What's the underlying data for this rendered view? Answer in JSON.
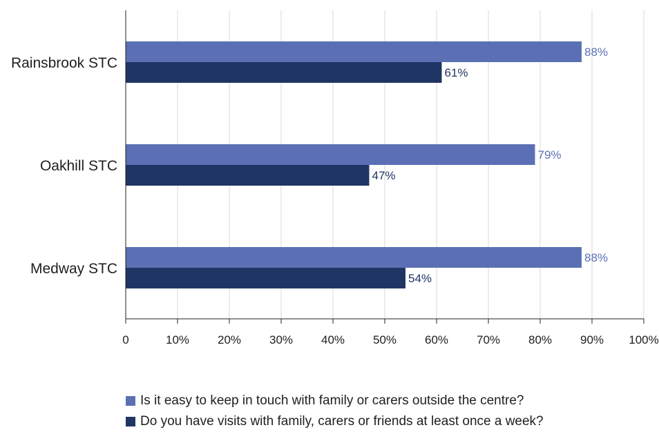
{
  "chart_data": {
    "type": "bar",
    "orientation": "horizontal",
    "categories": [
      "Rainsbrook STC",
      "Oakhill STC",
      "Medway STC"
    ],
    "series": [
      {
        "name": "Is it easy to keep in touch with family or carers outside the centre?",
        "values": [
          88,
          79,
          88
        ],
        "labels": [
          "88%",
          "79%",
          "88%"
        ],
        "color": "#5b70b4"
      },
      {
        "name": "Do you have visits with family, carers or friends at least once a week?",
        "values": [
          61,
          47,
          54
        ],
        "labels": [
          "61%",
          "47%",
          "54%"
        ],
        "color": "#1f3564"
      }
    ],
    "xlim": [
      0,
      100
    ],
    "xticks": [
      0,
      10,
      20,
      30,
      40,
      50,
      60,
      70,
      80,
      90,
      100
    ],
    "xtick_labels": [
      "0",
      "10%",
      "20%",
      "30%",
      "40%",
      "50%",
      "60%",
      "70%",
      "80%",
      "90%",
      "100%"
    ],
    "grid": true,
    "legend_position": "bottom",
    "title": "",
    "xlabel": "",
    "ylabel": ""
  }
}
